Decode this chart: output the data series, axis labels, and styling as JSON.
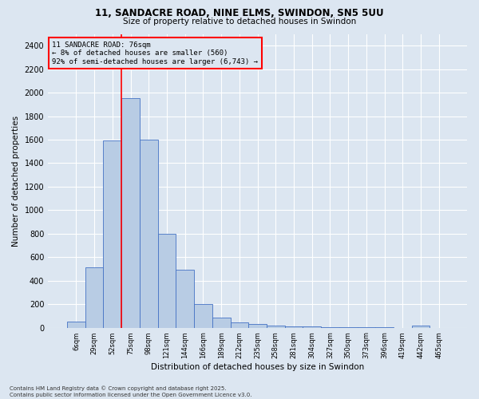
{
  "title_line1": "11, SANDACRE ROAD, NINE ELMS, SWINDON, SN5 5UU",
  "title_line2": "Size of property relative to detached houses in Swindon",
  "xlabel": "Distribution of detached houses by size in Swindon",
  "ylabel": "Number of detached properties",
  "categories": [
    "6sqm",
    "29sqm",
    "52sqm",
    "75sqm",
    "98sqm",
    "121sqm",
    "144sqm",
    "166sqm",
    "189sqm",
    "212sqm",
    "235sqm",
    "258sqm",
    "281sqm",
    "304sqm",
    "327sqm",
    "350sqm",
    "373sqm",
    "396sqm",
    "419sqm",
    "442sqm",
    "465sqm"
  ],
  "values": [
    50,
    510,
    1590,
    1950,
    1600,
    800,
    490,
    200,
    85,
    45,
    28,
    18,
    10,
    8,
    5,
    3,
    2,
    1,
    0,
    15,
    0
  ],
  "bar_color": "#b8cce4",
  "bar_edge_color": "#4472c4",
  "background_color": "#dce6f1",
  "annotation_text": "11 SANDACRE ROAD: 76sqm\n← 8% of detached houses are smaller (560)\n92% of semi-detached houses are larger (6,743) →",
  "vline_index": 3,
  "vline_color": "red",
  "annotation_box_color": "red",
  "ylim": [
    0,
    2500
  ],
  "yticks": [
    0,
    200,
    400,
    600,
    800,
    1000,
    1200,
    1400,
    1600,
    1800,
    2000,
    2200,
    2400
  ],
  "footer_text": "Contains HM Land Registry data © Crown copyright and database right 2025.\nContains public sector information licensed under the Open Government Licence v3.0.",
  "grid_color": "#ffffff"
}
